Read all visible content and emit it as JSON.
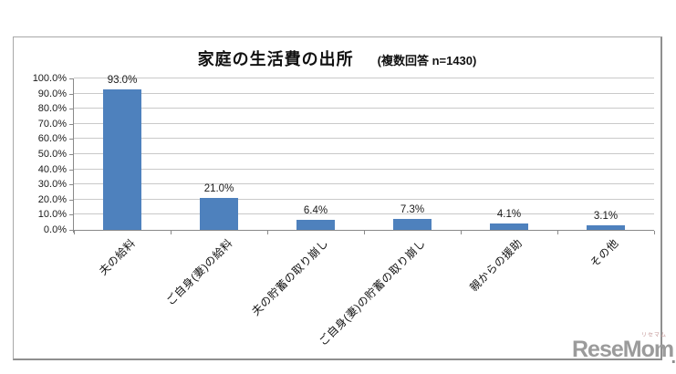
{
  "chart_data": {
    "type": "bar",
    "title": "家庭の生活費の出所",
    "subtitle": "(複数回答 n=1430)",
    "categories": [
      "夫の給料",
      "ご自身(妻)の給料",
      "夫の貯蓄の取り崩し",
      "ご自身(妻)の貯蓄の取り崩し",
      "親からの援助",
      "その他"
    ],
    "values": [
      93.0,
      21.0,
      6.4,
      7.3,
      4.1,
      3.1
    ],
    "value_labels": [
      "93.0%",
      "21.0%",
      "6.4%",
      "7.3%",
      "4.1%",
      "3.1%"
    ],
    "xlabel": "",
    "ylabel": "",
    "ylim": [
      0,
      100
    ],
    "ytick_step": 10,
    "ytick_labels": [
      "0.0%",
      "10.0%",
      "20.0%",
      "30.0%",
      "40.0%",
      "50.0%",
      "60.0%",
      "70.0%",
      "80.0%",
      "90.0%",
      "100.0%"
    ],
    "grid": true,
    "legend": false,
    "bar_color": "#4E81BD",
    "gridline_color": "#C9C9C9",
    "axis_color": "#8A8A8A",
    "text_color": "#1A1A1A"
  },
  "watermark": {
    "text": "ReseMom",
    "ruby": "リセマム",
    "period": ".",
    "color": "#9B9B9B"
  }
}
